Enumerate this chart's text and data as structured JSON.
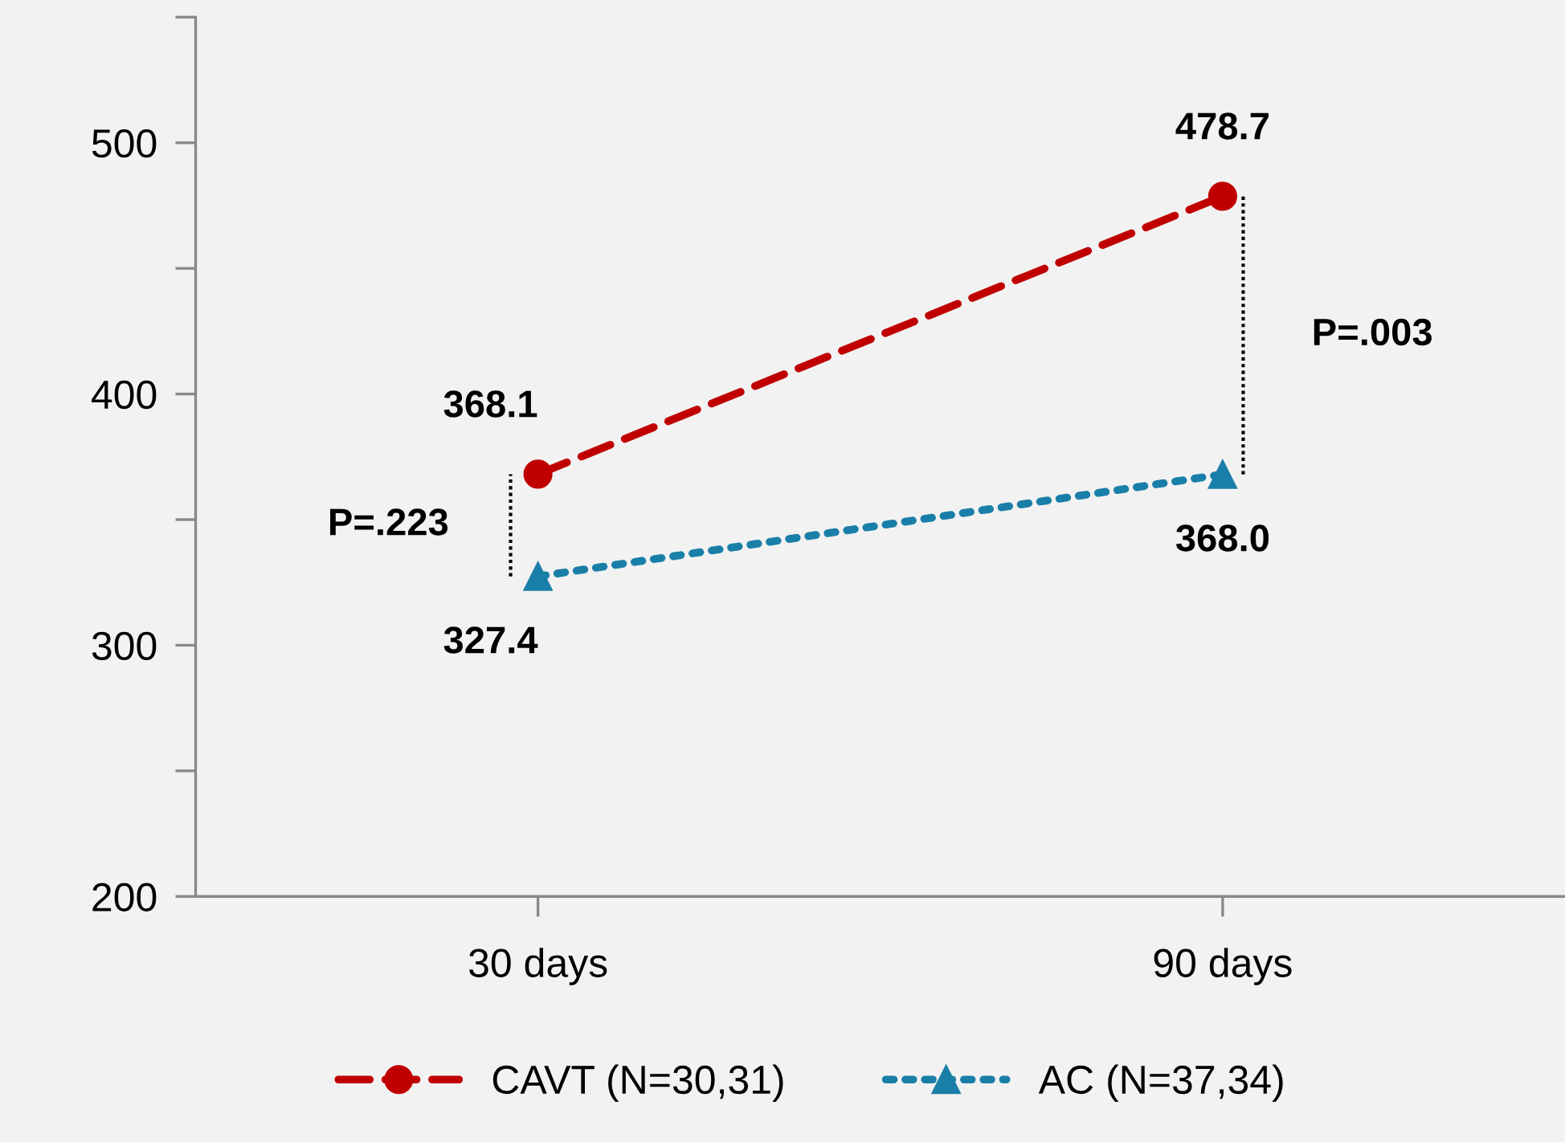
{
  "chart_data": {
    "type": "line",
    "categories": [
      "30 days",
      "90 days"
    ],
    "series": [
      {
        "name": "CAVT (N=30,31)",
        "color": "#c00000",
        "values": [
          368.1,
          478.7
        ],
        "value_labels": [
          "368.1",
          "478.7"
        ],
        "marker": "circle",
        "line_style": "dashed"
      },
      {
        "name": "AC (N=37,34)",
        "color": "#1a7fa8",
        "values": [
          327.4,
          368.0
        ],
        "value_labels": [
          "327.4",
          "368.0"
        ],
        "marker": "triangle",
        "line_style": "dotted"
      }
    ],
    "ylim": [
      200,
      550
    ],
    "yticks": [
      200,
      {
        "value": 250,
        "label": null
      },
      300,
      {
        "value": 350,
        "label": null
      },
      400,
      {
        "value": 450,
        "label": null
      },
      500,
      {
        "value": 550,
        "label": null
      }
    ],
    "grid": false,
    "legend": "bottom",
    "annotations": [
      "P=.223",
      "P=.003"
    ]
  }
}
